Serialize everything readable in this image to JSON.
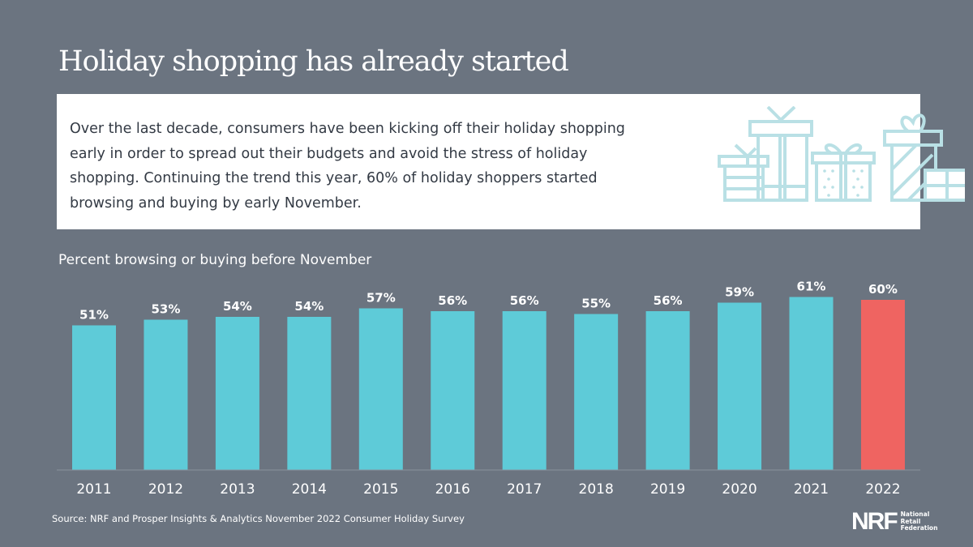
{
  "title": "Holiday shopping has already started",
  "intro": "Over the last decade, consumers have been kicking off their holiday shopping early in order to spread out their budgets and avoid the stress of holiday shopping. Continuing the trend this year, 60% of holiday shoppers started browsing and buying by early November.",
  "colors": {
    "background": "#6b7480",
    "bar": "#5ecbd8",
    "highlight": "#ef6461",
    "illustration": "#b9e0e5"
  },
  "chart_data": {
    "type": "bar",
    "title": "Percent browsing or buying before November",
    "categories": [
      "2011",
      "2012",
      "2013",
      "2014",
      "2015",
      "2016",
      "2017",
      "2018",
      "2019",
      "2020",
      "2021",
      "2022"
    ],
    "values": [
      51,
      53,
      54,
      54,
      57,
      56,
      56,
      55,
      56,
      59,
      61,
      60
    ],
    "data_labels": [
      "51%",
      "53%",
      "54%",
      "54%",
      "57%",
      "56%",
      "56%",
      "55%",
      "56%",
      "59%",
      "61%",
      "60%"
    ],
    "highlight_category": "2022",
    "ylim": [
      0,
      65
    ],
    "grid": false
  },
  "source": "Source: NRF and Prosper Insights & Analytics November 2022 Consumer Holiday Survey",
  "logo": {
    "mark": "NRF",
    "name_lines": [
      "National",
      "Retail",
      "Federation"
    ]
  }
}
